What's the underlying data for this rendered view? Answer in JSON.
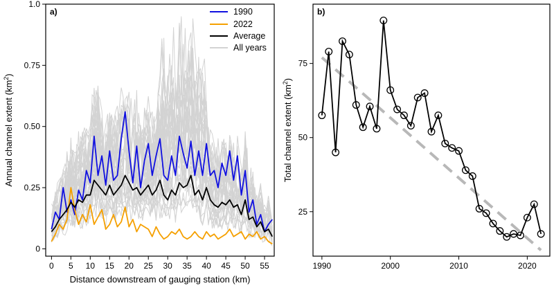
{
  "chart_data": [
    {
      "type": "line",
      "panel_label": "a)",
      "xlabel": "Distance downstream of gauging station (km)",
      "ylabel": "Annual channel extent (km",
      "ylabel_sup": "2",
      "ylabel_close": ")",
      "xlim": [
        -1.5,
        57.5
      ],
      "ylim": [
        -0.03,
        1.0
      ],
      "xticks": [
        0,
        5,
        10,
        15,
        20,
        25,
        30,
        35,
        40,
        45,
        50,
        55
      ],
      "xtick_labels": [
        "0",
        "5",
        "10",
        "15",
        "20",
        "25",
        "30",
        "35",
        "40",
        "45",
        "50",
        "55"
      ],
      "yticks": [
        0,
        0.25,
        0.5,
        0.75,
        1.0
      ],
      "ytick_labels": [
        "0",
        "0.25",
        "0.50",
        "0.75",
        "1.0"
      ],
      "legend_position": "top-right",
      "legend": [
        "1990",
        "2022",
        "Average",
        "All years"
      ],
      "colors": {
        "y1990": "#1010e0",
        "y2022": "#f5a000",
        "average": "#000000",
        "all_years": "#d3d3d3"
      },
      "series": [
        {
          "name": "1990",
          "x": [
            0,
            1,
            2,
            3,
            4,
            5,
            6,
            7,
            8,
            9,
            10,
            11,
            12,
            13,
            14,
            15,
            16,
            17,
            18,
            19,
            20,
            21,
            22,
            23,
            24,
            25,
            26,
            27,
            28,
            29,
            30,
            31,
            32,
            33,
            34,
            35,
            36,
            37,
            38,
            39,
            40,
            41,
            42,
            43,
            44,
            45,
            46,
            47,
            48,
            49,
            50,
            51,
            52,
            53,
            54,
            55,
            56,
            57
          ],
          "y": [
            0.08,
            0.15,
            0.12,
            0.25,
            0.15,
            0.2,
            0.14,
            0.24,
            0.2,
            0.32,
            0.27,
            0.46,
            0.3,
            0.38,
            0.26,
            0.4,
            0.28,
            0.3,
            0.45,
            0.56,
            0.4,
            0.27,
            0.42,
            0.25,
            0.36,
            0.43,
            0.3,
            0.38,
            0.45,
            0.3,
            0.28,
            0.38,
            0.3,
            0.46,
            0.39,
            0.33,
            0.44,
            0.3,
            0.4,
            0.3,
            0.43,
            0.3,
            0.32,
            0.25,
            0.35,
            0.3,
            0.4,
            0.28,
            0.38,
            0.22,
            0.32,
            0.15,
            0.2,
            0.1,
            0.14,
            0.07,
            0.1,
            0.12
          ]
        },
        {
          "name": "2022",
          "x": [
            0,
            1,
            2,
            3,
            4,
            5,
            6,
            7,
            8,
            9,
            10,
            11,
            12,
            13,
            14,
            15,
            16,
            17,
            18,
            19,
            20,
            21,
            22,
            23,
            24,
            25,
            26,
            27,
            28,
            29,
            30,
            31,
            32,
            33,
            34,
            35,
            36,
            37,
            38,
            39,
            40,
            41,
            42,
            43,
            44,
            45,
            46,
            47,
            48,
            49,
            50,
            51,
            52,
            53,
            54,
            55,
            56,
            57
          ],
          "y": [
            0.03,
            0.06,
            0.1,
            0.08,
            0.12,
            0.25,
            0.16,
            0.1,
            0.14,
            0.11,
            0.18,
            0.1,
            0.13,
            0.16,
            0.08,
            0.1,
            0.14,
            0.09,
            0.11,
            0.17,
            0.09,
            0.12,
            0.07,
            0.1,
            0.09,
            0.08,
            0.05,
            0.09,
            0.06,
            0.04,
            0.05,
            0.07,
            0.06,
            0.08,
            0.05,
            0.04,
            0.05,
            0.07,
            0.05,
            0.04,
            0.07,
            0.05,
            0.06,
            0.04,
            0.05,
            0.06,
            0.08,
            0.05,
            0.06,
            0.07,
            0.04,
            0.06,
            0.05,
            0.07,
            0.04,
            0.05,
            0.03,
            0.02
          ]
        },
        {
          "name": "Average",
          "x": [
            0,
            1,
            2,
            3,
            4,
            5,
            6,
            7,
            8,
            9,
            10,
            11,
            12,
            13,
            14,
            15,
            16,
            17,
            18,
            19,
            20,
            21,
            22,
            23,
            24,
            25,
            26,
            27,
            28,
            29,
            30,
            31,
            32,
            33,
            34,
            35,
            36,
            37,
            38,
            39,
            40,
            41,
            42,
            43,
            44,
            45,
            46,
            47,
            48,
            49,
            50,
            51,
            52,
            53,
            54,
            55,
            56,
            57
          ],
          "y": [
            0.07,
            0.09,
            0.12,
            0.14,
            0.16,
            0.19,
            0.17,
            0.2,
            0.19,
            0.22,
            0.22,
            0.28,
            0.26,
            0.24,
            0.22,
            0.26,
            0.22,
            0.24,
            0.26,
            0.3,
            0.27,
            0.24,
            0.25,
            0.22,
            0.24,
            0.26,
            0.22,
            0.24,
            0.28,
            0.22,
            0.2,
            0.24,
            0.22,
            0.27,
            0.25,
            0.26,
            0.3,
            0.22,
            0.24,
            0.2,
            0.25,
            0.2,
            0.18,
            0.17,
            0.19,
            0.18,
            0.2,
            0.17,
            0.18,
            0.14,
            0.2,
            0.12,
            0.13,
            0.09,
            0.11,
            0.07,
            0.08,
            0.05
          ]
        }
      ],
      "background_series_count": 33
    },
    {
      "type": "line",
      "panel_label": "b)",
      "xlabel": "",
      "ylabel": "Total channel extent (km",
      "ylabel_sup": "2",
      "ylabel_close": ")",
      "xlim": [
        1988.7,
        2023.3
      ],
      "ylim": [
        10,
        95
      ],
      "xticks": [
        1990,
        2000,
        2010,
        2020
      ],
      "xtick_labels": [
        "1990",
        "2000",
        "2010",
        "2020"
      ],
      "yticks": [
        25,
        50,
        75
      ],
      "ytick_labels": [
        "25",
        "50",
        "75"
      ],
      "colors": {
        "line": "#000000",
        "trend": "#b8b8b8"
      },
      "series": [
        {
          "name": "",
          "x": [
            1990,
            1991,
            1992,
            1993,
            1994,
            1995,
            1996,
            1997,
            1998,
            1999,
            2000,
            2001,
            2002,
            2003,
            2004,
            2005,
            2006,
            2007,
            2008,
            2009,
            2010,
            2011,
            2012,
            2013,
            2014,
            2015,
            2016,
            2017,
            2018,
            2019,
            2020,
            2021,
            2022
          ],
          "y": [
            57.5,
            79,
            45,
            82.5,
            78,
            61,
            53.5,
            60.5,
            53,
            89.5,
            66,
            59.5,
            57.5,
            54,
            63.5,
            65,
            52,
            57.5,
            48,
            46.5,
            45.5,
            39,
            37,
            26,
            24.5,
            21,
            18.5,
            16.5,
            17.5,
            17,
            23,
            27.5,
            17.5
          ]
        }
      ],
      "trend": {
        "x": [
          1990,
          2022
        ],
        "y": [
          77,
          12
        ]
      }
    }
  ]
}
